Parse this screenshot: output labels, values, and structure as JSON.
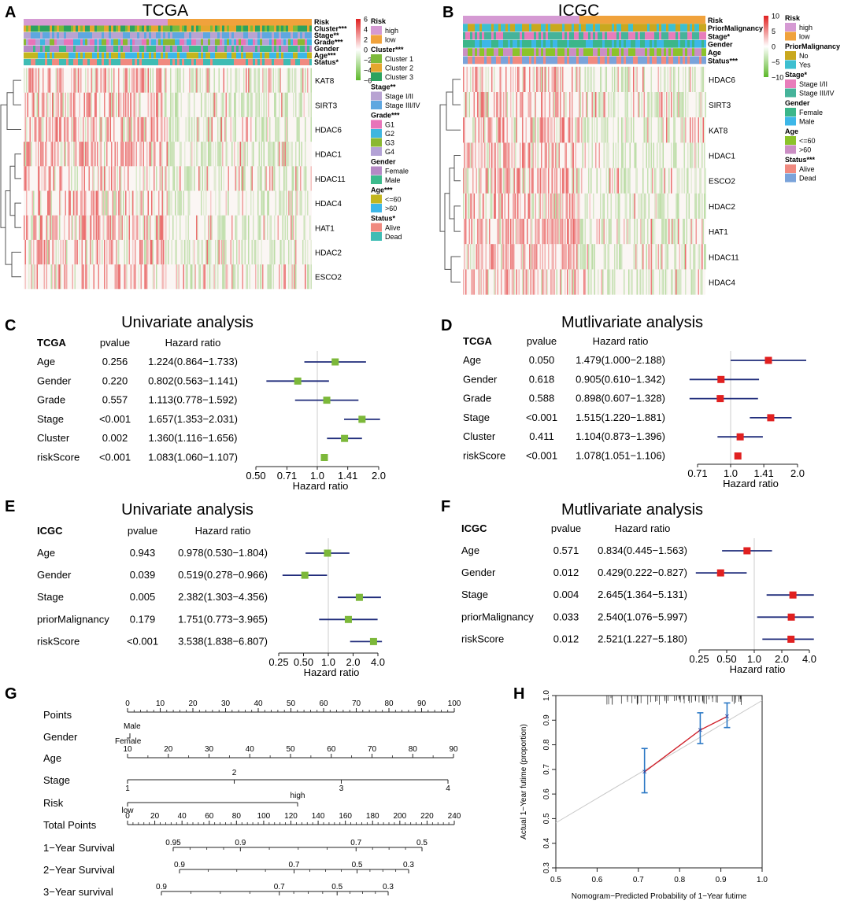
{
  "figure": {
    "panels": {
      "A": {
        "letter": "A",
        "title": "TCGA",
        "annotations": [
          "Risk",
          "Cluster***",
          "Stage**",
          "Grade***",
          "Gender",
          "Age***",
          "Status*"
        ],
        "colorbar_ticks": [
          "6",
          "4",
          "2",
          "0",
          "−2",
          "−4",
          "−6"
        ],
        "genes": [
          "KAT8",
          "SIRT3",
          "HDAC6",
          "HDAC1",
          "HDAC11",
          "HDAC4",
          "HAT1",
          "HDAC2",
          "ESCO2"
        ],
        "legend": [
          {
            "title": "Risk",
            "items": [
              {
                "label": "high",
                "color": "#d59ad3"
              },
              {
                "label": "low",
                "color": "#f0a23c"
              }
            ]
          },
          {
            "title": "Cluster***",
            "items": [
              {
                "label": "Cluster 1",
                "color": "#7dba3a"
              },
              {
                "label": "Cluster 2",
                "color": "#e5a62e"
              },
              {
                "label": "Cluster 3",
                "color": "#2ca25f"
              }
            ]
          },
          {
            "title": "Stage**",
            "items": [
              {
                "label": "Stage I/II",
                "color": "#b8a3d2"
              },
              {
                "label": "Stage III/IV",
                "color": "#5fa7e0"
              }
            ]
          },
          {
            "title": "Grade***",
            "items": [
              {
                "label": "G1",
                "color": "#e874b9"
              },
              {
                "label": "G2",
                "color": "#3fb6e0"
              },
              {
                "label": "G3",
                "color": "#8ab832"
              },
              {
                "label": "G4",
                "color": "#b3a2d6"
              }
            ]
          },
          {
            "title": "Gender",
            "items": [
              {
                "label": "Female",
                "color": "#b589c5"
              },
              {
                "label": "Male",
                "color": "#3cba8c"
              }
            ]
          },
          {
            "title": "Age***",
            "items": [
              {
                "label": "<=60",
                "color": "#c3b61e"
              },
              {
                "label": ">60",
                "color": "#3db7e8"
              }
            ]
          },
          {
            "title": "Status*",
            "items": [
              {
                "label": "Alive",
                "color": "#f08a80"
              },
              {
                "label": "Dead",
                "color": "#3fbcb4"
              }
            ]
          }
        ]
      },
      "B": {
        "letter": "B",
        "title": "ICGC",
        "annotations": [
          "Risk",
          "PriorMalignancy",
          "Stage*",
          "Gender",
          "Age",
          "Status***"
        ],
        "colorbar_ticks": [
          "10",
          "5",
          "0",
          "−5",
          "−10"
        ],
        "genes": [
          "HDAC6",
          "SIRT3",
          "KAT8",
          "HDAC1",
          "ESCO2",
          "HDAC2",
          "HAT1",
          "HDAC11",
          "HDAC4"
        ],
        "legend": [
          {
            "title": "Risk",
            "items": [
              {
                "label": "high",
                "color": "#d59ad3"
              },
              {
                "label": "low",
                "color": "#f0a23c"
              }
            ]
          },
          {
            "title": "PriorMalignancy",
            "items": [
              {
                "label": "No",
                "color": "#c9a81f"
              },
              {
                "label": "Yes",
                "color": "#3dbfd0"
              }
            ]
          },
          {
            "title": "Stage*",
            "items": [
              {
                "label": "Stage I/II",
                "color": "#e87dbb"
              },
              {
                "label": "Stage III/IV",
                "color": "#46b39a"
              }
            ]
          },
          {
            "title": "Gender",
            "items": [
              {
                "label": "Female",
                "color": "#3bb68a"
              },
              {
                "label": "Male",
                "color": "#3db7e8"
              }
            ]
          },
          {
            "title": "Age",
            "items": [
              {
                "label": "<=60",
                "color": "#8bc32a"
              },
              {
                "label": ">60",
                "color": "#cb8ec4"
              }
            ]
          },
          {
            "title": "Status***",
            "items": [
              {
                "label": "Alive",
                "color": "#f08a80"
              },
              {
                "label": "Dead",
                "color": "#7aa3da"
              }
            ]
          }
        ]
      },
      "G": {
        "letter": "G",
        "rows": [
          {
            "label": "Points",
            "ticks": [
              "0",
              "10",
              "20",
              "30",
              "40",
              "50",
              "60",
              "70",
              "80",
              "90",
              "100"
            ]
          },
          {
            "label": "Gender",
            "ticks": [
              "Male",
              "Female"
            ]
          },
          {
            "label": "Age",
            "ticks": [
              "10",
              "20",
              "30",
              "40",
              "50",
              "60",
              "70",
              "80",
              "90"
            ]
          },
          {
            "label": "Stage",
            "ticks": [
              "1",
              "2",
              "3",
              "4"
            ]
          },
          {
            "label": "Risk",
            "ticks": [
              "low",
              "high"
            ]
          },
          {
            "label": "Total Points",
            "ticks": [
              "0",
              "20",
              "40",
              "60",
              "80",
              "100",
              "120",
              "140",
              "160",
              "180",
              "200",
              "220",
              "240"
            ]
          },
          {
            "label": "1−Year Survival",
            "ticks": [
              "0.95",
              "0.9",
              "0.7",
              "0.5"
            ]
          },
          {
            "label": "2−Year Survival",
            "ticks": [
              "0.9",
              "0.7",
              "0.5",
              "0.3"
            ]
          },
          {
            "label": "3−Year survival",
            "ticks": [
              "0.9",
              "0.7",
              "0.5",
              "0.3"
            ]
          }
        ]
      },
      "H": {
        "letter": "H"
      }
    }
  },
  "chart_data": [
    {
      "type": "scatter",
      "id": "C",
      "letter": "C",
      "title": "Univariate analysis",
      "cohort": "TCGA",
      "headers": [
        "TCGA",
        "pvalue",
        "Hazard ratio"
      ],
      "xlabel": "Hazard ratio",
      "xticks": [
        0.5,
        0.71,
        1.0,
        1.41,
        2.0
      ],
      "xtick_labels": [
        "0.50",
        "0.71",
        "1.0",
        "1.41",
        "2.0"
      ],
      "xlim": [
        0.5,
        2.0
      ],
      "marker_color": "#7cb83a",
      "rows": [
        {
          "name": "Age",
          "p": "0.256",
          "hr_text": "1.224(0.864−1.733)",
          "hr": 1.224,
          "lo": 0.864,
          "hi": 1.733
        },
        {
          "name": "Gender",
          "p": "0.220",
          "hr_text": "0.802(0.563−1.141)",
          "hr": 0.802,
          "lo": 0.563,
          "hi": 1.141
        },
        {
          "name": "Grade",
          "p": "0.557",
          "hr_text": "1.113(0.778−1.592)",
          "hr": 1.113,
          "lo": 0.778,
          "hi": 1.592
        },
        {
          "name": "Stage",
          "p": "<0.001",
          "hr_text": "1.657(1.353−2.031)",
          "hr": 1.657,
          "lo": 1.353,
          "hi": 2.031
        },
        {
          "name": "Cluster",
          "p": "0.002",
          "hr_text": "1.360(1.116−1.656)",
          "hr": 1.36,
          "lo": 1.116,
          "hi": 1.656
        },
        {
          "name": "riskScore",
          "p": "<0.001",
          "hr_text": "1.083(1.060−1.107)",
          "hr": 1.083,
          "lo": 1.06,
          "hi": 1.107
        }
      ]
    },
    {
      "type": "scatter",
      "id": "D",
      "letter": "D",
      "title": "Mutlivariate analysis",
      "cohort": "TCGA",
      "headers": [
        "TCGA",
        "pvalue",
        "Hazard ratio"
      ],
      "xlabel": "Hazard ratio",
      "xticks": [
        0.71,
        1.0,
        1.41,
        2.0
      ],
      "xtick_labels": [
        "0.71",
        "1.0",
        "1.41",
        "2.0"
      ],
      "xlim": [
        0.71,
        2.0
      ],
      "marker_color": "#e02020",
      "rows": [
        {
          "name": "Age",
          "p": "0.050",
          "hr_text": "1.479(1.000−2.188)",
          "hr": 1.479,
          "lo": 1.0,
          "hi": 2.188
        },
        {
          "name": "Gender",
          "p": "0.618",
          "hr_text": "0.905(0.610−1.342)",
          "hr": 0.905,
          "lo": 0.61,
          "hi": 1.342
        },
        {
          "name": "Grade",
          "p": "0.588",
          "hr_text": "0.898(0.607−1.328)",
          "hr": 0.898,
          "lo": 0.607,
          "hi": 1.328
        },
        {
          "name": "Stage",
          "p": "<0.001",
          "hr_text": "1.515(1.220−1.881)",
          "hr": 1.515,
          "lo": 1.22,
          "hi": 1.881
        },
        {
          "name": "Cluster",
          "p": "0.411",
          "hr_text": "1.104(0.873−1.396)",
          "hr": 1.104,
          "lo": 0.873,
          "hi": 1.396
        },
        {
          "name": "riskScore",
          "p": "<0.001",
          "hr_text": "1.078(1.051−1.106)",
          "hr": 1.078,
          "lo": 1.051,
          "hi": 1.106
        }
      ]
    },
    {
      "type": "scatter",
      "id": "E",
      "letter": "E",
      "title": "Univariate analysis",
      "cohort": "ICGC",
      "headers": [
        "ICGC",
        "pvalue",
        "Hazard ratio"
      ],
      "xlabel": "Hazard ratio",
      "xticks": [
        0.25,
        0.5,
        1.0,
        2.0,
        4.0
      ],
      "xtick_labels": [
        "0.25",
        "0.50",
        "1.0",
        "2.0",
        "4.0"
      ],
      "xlim": [
        0.25,
        4.0
      ],
      "marker_color": "#7cb83a",
      "rows": [
        {
          "name": "Age",
          "p": "0.943",
          "hr_text": "0.978(0.530−1.804)",
          "hr": 0.978,
          "lo": 0.53,
          "hi": 1.804
        },
        {
          "name": "Gender",
          "p": "0.039",
          "hr_text": "0.519(0.278−0.966)",
          "hr": 0.519,
          "lo": 0.278,
          "hi": 0.966
        },
        {
          "name": "Stage",
          "p": "0.005",
          "hr_text": "2.382(1.303−4.356)",
          "hr": 2.382,
          "lo": 1.303,
          "hi": 4.356
        },
        {
          "name": "priorMalignancy",
          "p": "0.179",
          "hr_text": "1.751(0.773−3.965)",
          "hr": 1.751,
          "lo": 0.773,
          "hi": 3.965
        },
        {
          "name": "riskScore",
          "p": "<0.001",
          "hr_text": "3.538(1.838−6.807)",
          "hr": 3.538,
          "lo": 1.838,
          "hi": 6.807
        }
      ]
    },
    {
      "type": "scatter",
      "id": "F",
      "letter": "F",
      "title": "Mutlivariate analysis",
      "cohort": "ICGC",
      "headers": [
        "ICGC",
        "pvalue",
        "Hazard ratio"
      ],
      "xlabel": "Hazard ratio",
      "xticks": [
        0.25,
        0.5,
        1.0,
        2.0,
        4.0
      ],
      "xtick_labels": [
        "0.25",
        "0.50",
        "1.0",
        "2.0",
        "4.0"
      ],
      "xlim": [
        0.25,
        4.0
      ],
      "marker_color": "#e02020",
      "rows": [
        {
          "name": "Age",
          "p": "0.571",
          "hr_text": "0.834(0.445−1.563)",
          "hr": 0.834,
          "lo": 0.445,
          "hi": 1.563
        },
        {
          "name": "Gender",
          "p": "0.012",
          "hr_text": "0.429(0.222−0.827)",
          "hr": 0.429,
          "lo": 0.222,
          "hi": 0.827
        },
        {
          "name": "Stage",
          "p": "0.004",
          "hr_text": "2.645(1.364−5.131)",
          "hr": 2.645,
          "lo": 1.364,
          "hi": 5.131
        },
        {
          "name": "priorMalignancy",
          "p": "0.033",
          "hr_text": "2.540(1.076−5.997)",
          "hr": 2.54,
          "lo": 1.076,
          "hi": 5.997
        },
        {
          "name": "riskScore",
          "p": "0.012",
          "hr_text": "2.521(1.227−5.180)",
          "hr": 2.521,
          "lo": 1.227,
          "hi": 5.18
        }
      ]
    },
    {
      "type": "line",
      "id": "H",
      "letter": "H",
      "xlabel": "Nomogram−Predicted Probability of 1−Year futime",
      "ylabel": "Actual 1−Year futime (proportion)",
      "xlim": [
        0.5,
        1.0
      ],
      "ylim": [
        0.3,
        1.0
      ],
      "xticks": [
        0.5,
        0.6,
        0.7,
        0.8,
        0.9,
        1.0
      ],
      "xtick_labels": [
        "0.5",
        "0.6",
        "0.7",
        "0.8",
        "0.9",
        "1.0"
      ],
      "yticks": [
        0.3,
        0.4,
        0.5,
        0.6,
        0.7,
        0.8,
        0.9,
        1.0
      ],
      "ytick_labels": [
        "0.3",
        "0.4",
        "0.5",
        "0.6",
        "0.7",
        "0.8",
        "0.9",
        "1.0"
      ],
      "points": [
        {
          "x": 0.715,
          "y": 0.69,
          "lo": 0.605,
          "hi": 0.785
        },
        {
          "x": 0.85,
          "y": 0.86,
          "lo": 0.805,
          "hi": 0.93
        },
        {
          "x": 0.915,
          "y": 0.915,
          "lo": 0.87,
          "hi": 0.97
        }
      ]
    }
  ]
}
